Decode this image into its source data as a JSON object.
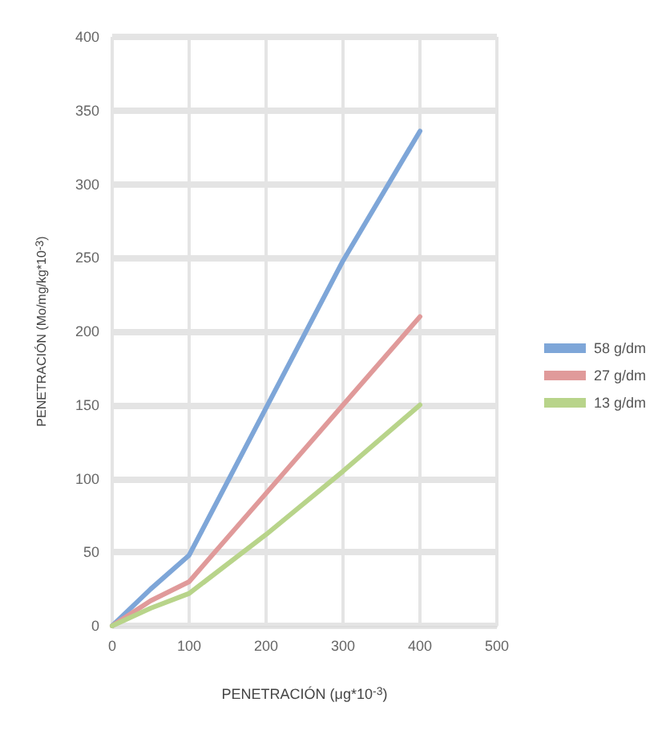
{
  "chart_data": {
    "type": "line",
    "xlabel": "PENETRACIÓN (μg*10$^{-3}$)",
    "ylabel": "PENETRACIÓN (Mo/mg/kg*10$^{-3}$)",
    "x": [
      0,
      50,
      100,
      200,
      300,
      400
    ],
    "series": [
      {
        "name": "58 g/dm",
        "color": "#7ea6d8",
        "values": [
          0,
          25,
          48,
          148,
          248,
          336
        ]
      },
      {
        "name": "27 g/dm",
        "color": "#e09a9a",
        "values": [
          0,
          17,
          30,
          90,
          150,
          210
        ]
      },
      {
        "name": "13 g/dm",
        "color": "#b8d48a",
        "values": [
          0,
          12,
          22,
          62,
          105,
          150
        ]
      }
    ],
    "xlim": [
      0,
      500
    ],
    "xticks": [
      0,
      100,
      200,
      300,
      400,
      500
    ],
    "ylim": [
      0,
      400
    ],
    "yticks": [
      0,
      50,
      100,
      150,
      200,
      250,
      300,
      350,
      400
    ],
    "grid": true,
    "legend": "right",
    "marker": "none",
    "line_style": "solid"
  }
}
